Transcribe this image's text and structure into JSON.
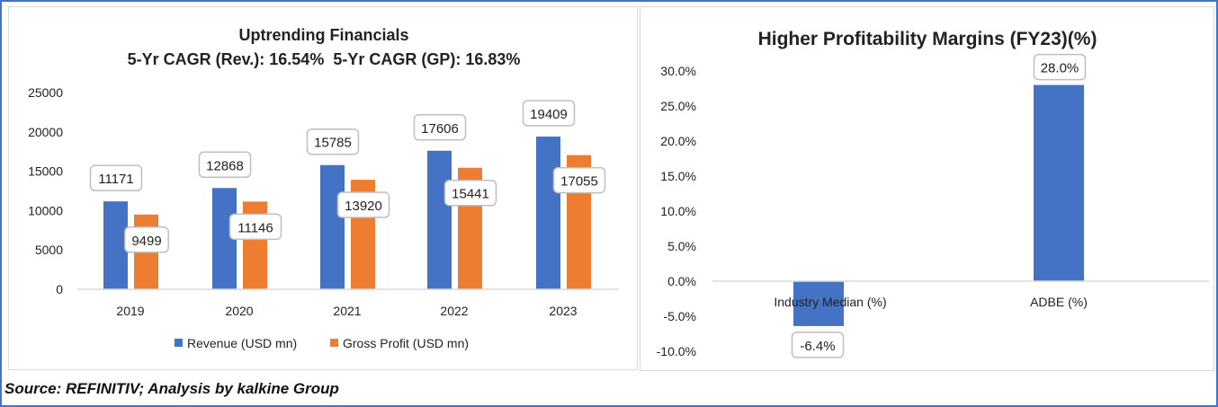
{
  "source": "Source: REFINITIV; Analysis by kalkine Group",
  "chart_data": [
    {
      "type": "bar",
      "title": "Uptrending Financials",
      "subtitle": "5-Yr CAGR (Rev.): 16.54%  5-Yr CAGR (GP): 16.83%",
      "categories": [
        "2019",
        "2020",
        "2021",
        "2022",
        "2023"
      ],
      "series": [
        {
          "name": "Revenue (USD mn)",
          "color": "#4472c4",
          "values": [
            11171,
            12868,
            15785,
            17606,
            19409
          ]
        },
        {
          "name": "Gross Profit (USD mn)",
          "color": "#ed7d31",
          "values": [
            9499,
            11146,
            13920,
            15441,
            17055
          ]
        }
      ],
      "ylim": [
        0,
        25000
      ],
      "yticks": [
        "0",
        "5000",
        "10000",
        "15000",
        "20000",
        "25000"
      ],
      "grid": false,
      "legend": "bottom"
    },
    {
      "type": "bar",
      "title": "Higher Profitability Margins (FY23)(%)",
      "categories": [
        "Industry Median (%)",
        "ADBE (%)"
      ],
      "series": [
        {
          "color": "#4472c4",
          "values": [
            -6.4,
            28.0
          ],
          "labels": [
            "-6.4%",
            "28.0%"
          ]
        }
      ],
      "ylim": [
        -10,
        30
      ],
      "yticks": [
        "-10.0%",
        "-5.0%",
        "0.0%",
        "5.0%",
        "10.0%",
        "15.0%",
        "20.0%",
        "25.0%",
        "30.0%"
      ],
      "grid": false,
      "legend": "none"
    }
  ]
}
